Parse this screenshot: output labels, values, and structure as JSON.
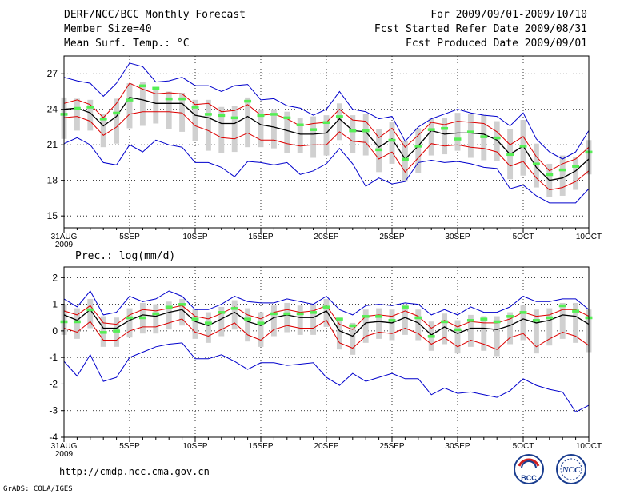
{
  "header": {
    "title": "DERF/NCC/BCC Monthly Forecast",
    "member_size": "Member Size=40",
    "variable": "Mean Surf. Temp.: °C",
    "period": "For 2009/09/01-2009/10/10",
    "started": "Fcst Started Refer Date 2009/08/31",
    "produced": "Fcst Produced Date 2009/09/01"
  },
  "footer": {
    "url": "http://cmdp.ncc.cma.gov.cn",
    "credit": "GrADS: COLA/IGES",
    "logo_bcc": "BCC",
    "logo_ncc": "NCC"
  },
  "colors": {
    "box": "#d0d0d0",
    "median": "#55ee55",
    "mean": "#000000",
    "spread": "#dd0000",
    "extreme": "#0000cc",
    "grid": "#000000"
  },
  "chart_data": [
    {
      "type": "line",
      "name": "temperature",
      "title": "Mean Surf. Temp.: °C",
      "xlabel": "",
      "ylabel": "",
      "ylim": [
        14,
        28.5
      ],
      "yticks": [
        15,
        18,
        21,
        24,
        27
      ],
      "xtick_labels": [
        "31AUG",
        "5SEP",
        "10SEP",
        "15SEP",
        "20SEP",
        "25SEP",
        "30SEP",
        "5OCT",
        "10OCT"
      ],
      "xtick_sub": "2009",
      "x": [
        0,
        1,
        2,
        3,
        4,
        5,
        6,
        7,
        8,
        9,
        10,
        11,
        12,
        13,
        14,
        15,
        16,
        17,
        18,
        19,
        20,
        21,
        22,
        23,
        24,
        25,
        26,
        27,
        28,
        29,
        30,
        31,
        32,
        33,
        34,
        35,
        36,
        37,
        38,
        39,
        40
      ],
      "mean": [
        24,
        24.1,
        23.7,
        22.6,
        23.4,
        25,
        24.8,
        24.5,
        24.5,
        24.5,
        23.5,
        23.3,
        22.8,
        22.8,
        23.4,
        22.7,
        22.5,
        22.2,
        21.9,
        21.9,
        22,
        23.2,
        22.2,
        22.1,
        20.8,
        21.5,
        19.8,
        20.9,
        22.2,
        21.9,
        22,
        22,
        21.9,
        21.4,
        20.2,
        20.9,
        19.1,
        18,
        18.2,
        18.8,
        19.8
      ],
      "spread_upper": [
        24.5,
        24.8,
        24.4,
        23.3,
        24.5,
        26.2,
        25.7,
        25.3,
        25.4,
        25.3,
        24.4,
        24.5,
        23.8,
        23.9,
        24.4,
        23.5,
        23.6,
        23.2,
        22.6,
        22.8,
        22.9,
        24,
        23.1,
        23,
        21.6,
        22.4,
        20.8,
        21.8,
        22.9,
        22.7,
        23,
        22.9,
        22.8,
        22.1,
        21,
        21.7,
        20,
        18.8,
        19.4,
        19.8,
        20.8
      ],
      "spread_lower": [
        23.3,
        23.4,
        23,
        21.8,
        22.5,
        23.6,
        23.8,
        23.8,
        23.8,
        23.7,
        22.6,
        22.2,
        21.6,
        21.5,
        22,
        21.4,
        21.4,
        21.1,
        20.9,
        21,
        21,
        22.1,
        21.3,
        21.2,
        19.8,
        20.4,
        18.7,
        19.9,
        21.1,
        20.9,
        21,
        20.8,
        20.7,
        20.4,
        19.2,
        19.6,
        18.2,
        17.2,
        17.4,
        17.9,
        18.8
      ],
      "max": [
        26.7,
        26.4,
        26.2,
        25.1,
        26.2,
        27.9,
        27.6,
        26.3,
        26.4,
        26.7,
        26,
        26,
        25.5,
        26,
        26.1,
        24.8,
        24.9,
        24.3,
        24.1,
        23.5,
        24,
        25.5,
        24,
        23.8,
        23.2,
        23.4,
        21.3,
        22.5,
        23.2,
        23.6,
        24,
        23.7,
        23.5,
        23.4,
        22.6,
        23.7,
        21.5,
        20.4,
        19.8,
        20.4,
        22.2
      ],
      "min": [
        21.1,
        21.6,
        21,
        19.5,
        19.3,
        21,
        20.4,
        21.4,
        21,
        20.8,
        19.5,
        19.5,
        19.1,
        18.3,
        19.6,
        19.5,
        19.3,
        19.5,
        18.5,
        18.8,
        19.4,
        20.7,
        19.4,
        17.5,
        18.2,
        17.7,
        17.9,
        19.5,
        19.7,
        19.5,
        19.6,
        19.4,
        19.1,
        19,
        17.3,
        17.6,
        16.7,
        16.1,
        16.1,
        16.1,
        17.3
      ],
      "median": [
        23.6,
        24.1,
        24.2,
        23.2,
        23.7,
        24.8,
        26,
        25.8,
        24.9,
        24.9,
        24.2,
        23.6,
        23.5,
        23.3,
        24.7,
        23.5,
        23.6,
        23.3,
        22.7,
        22.3,
        22.9,
        23.4,
        22.2,
        22.2,
        20.6,
        21.4,
        19.8,
        20.9,
        22.3,
        22.4,
        21.5,
        22.1,
        21.7,
        21.6,
        20.2,
        20.9,
        19.4,
        18.5,
        18.9,
        19.2,
        20.4
      ],
      "box_high": [
        25,
        24.9,
        24.8,
        23.6,
        24.9,
        26.2,
        26.3,
        25.7,
        25.5,
        25.4,
        24.8,
        24.8,
        24.2,
        24.3,
        25,
        24,
        24,
        23.8,
        23.3,
        23.4,
        23.5,
        24.5,
        23.5,
        23.6,
        22.3,
        22.9,
        21.3,
        22.4,
        23.2,
        23.3,
        23.7,
        23.6,
        23.5,
        23,
        22.3,
        23.1,
        21.1,
        19.4,
        20.1,
        20,
        21.4
      ],
      "box_low": [
        21.5,
        22.2,
        22.2,
        20.8,
        21.1,
        22.4,
        22.6,
        22.8,
        22.3,
        22.1,
        21.3,
        20.5,
        20.3,
        20.4,
        20.8,
        20.8,
        20.7,
        20.3,
        20.3,
        19.9,
        20.1,
        21.4,
        20.3,
        20.1,
        18.7,
        19.4,
        17.9,
        18.6,
        20.1,
        20.2,
        20.5,
        19.9,
        19.7,
        19.6,
        18.1,
        18.4,
        17.4,
        16.6,
        16.7,
        17.2,
        18.5
      ]
    },
    {
      "type": "line",
      "name": "precipitation",
      "title": "Prec.: log(mm/d)",
      "xlabel": "",
      "ylabel": "",
      "ylim": [
        -4,
        2.4
      ],
      "yticks": [
        -4,
        -3,
        -2,
        -1,
        0,
        1,
        2
      ],
      "xtick_labels": [
        "31AUG",
        "5SEP",
        "10SEP",
        "15SEP",
        "20SEP",
        "25SEP",
        "30SEP",
        "5OCT",
        "10OCT"
      ],
      "xtick_sub": "2009",
      "x": [
        0,
        1,
        2,
        3,
        4,
        5,
        6,
        7,
        8,
        9,
        10,
        11,
        12,
        13,
        14,
        15,
        16,
        17,
        18,
        19,
        20,
        21,
        22,
        23,
        24,
        25,
        26,
        27,
        28,
        29,
        30,
        31,
        32,
        33,
        34,
        35,
        36,
        37,
        38,
        39,
        40
      ],
      "mean": [
        0.6,
        0.4,
        0.8,
        0.1,
        0.1,
        0.4,
        0.6,
        0.55,
        0.7,
        0.8,
        0.35,
        0.2,
        0.45,
        0.7,
        0.35,
        0.2,
        0.5,
        0.6,
        0.5,
        0.5,
        0.75,
        0,
        -0.2,
        0.3,
        0.35,
        0.3,
        0.5,
        0.3,
        -0.15,
        0.15,
        -0.1,
        0.1,
        0.1,
        0.05,
        0.2,
        0.45,
        0.3,
        0.4,
        0.6,
        0.55,
        0.25
      ],
      "spread_upper": [
        0.75,
        0.6,
        0.95,
        0.3,
        0.25,
        0.6,
        0.8,
        0.75,
        0.85,
        0.95,
        0.55,
        0.45,
        0.65,
        0.9,
        0.6,
        0.45,
        0.7,
        0.8,
        0.7,
        0.75,
        0.95,
        0.25,
        0.05,
        0.55,
        0.6,
        0.55,
        0.75,
        0.55,
        0.1,
        0.4,
        0.15,
        0.35,
        0.3,
        0.3,
        0.45,
        0.7,
        0.55,
        0.6,
        0.8,
        0.8,
        0.55
      ],
      "spread_lower": [
        0.1,
        -0.05,
        0.35,
        -0.35,
        -0.35,
        0,
        0.15,
        0.15,
        0.3,
        0.45,
        -0.05,
        -0.2,
        0.05,
        0.3,
        -0.15,
        -0.35,
        0.05,
        0.2,
        0.1,
        0.1,
        0.4,
        -0.45,
        -0.65,
        -0.2,
        -0.05,
        -0.1,
        0.1,
        -0.1,
        -0.5,
        -0.25,
        -0.6,
        -0.35,
        -0.5,
        -0.7,
        -0.25,
        -0.1,
        -0.6,
        -0.3,
        -0.05,
        -0.2,
        -0.55
      ],
      "max": [
        1.2,
        0.9,
        1.5,
        0.6,
        0.7,
        1.3,
        1.1,
        1.2,
        1.5,
        1.3,
        0.8,
        0.8,
        1,
        1.3,
        1.1,
        1.05,
        1.05,
        1.2,
        1.1,
        1,
        1.3,
        0.8,
        0.6,
        0.95,
        1,
        0.95,
        1.05,
        1,
        0.6,
        0.8,
        0.6,
        0.9,
        0.7,
        0.7,
        0.9,
        1.3,
        1.1,
        1.1,
        1.2,
        1.2,
        0.8
      ],
      "min": [
        -1.15,
        -1.7,
        -0.9,
        -1.9,
        -1.75,
        -1,
        -0.8,
        -0.6,
        -0.5,
        -0.45,
        -1.05,
        -1.05,
        -0.9,
        -1.15,
        -1.45,
        -1.2,
        -1.2,
        -1.3,
        -1.25,
        -1.2,
        -1.75,
        -2.05,
        -1.6,
        -1.9,
        -1.75,
        -1.6,
        -1.8,
        -1.8,
        -2.4,
        -2.15,
        -2.35,
        -2.3,
        -2.4,
        -2.5,
        -2.25,
        -1.8,
        -2.05,
        -2.2,
        -2.3,
        -3.05,
        -2.8
      ],
      "median": [
        0.35,
        0.35,
        0.8,
        -0.05,
        0,
        0.5,
        0.5,
        0.65,
        0.9,
        1,
        0.45,
        0.3,
        0.7,
        0.85,
        0.45,
        0.3,
        0.65,
        0.65,
        0.65,
        0.7,
        0.9,
        0.45,
        0.2,
        0.55,
        0.55,
        0.4,
        0.9,
        0.5,
        -0.2,
        0.35,
        0.05,
        0.4,
        0.45,
        0.35,
        0.55,
        0.7,
        0.4,
        0.5,
        0.95,
        0.75,
        0.5
      ]
    }
  ]
}
